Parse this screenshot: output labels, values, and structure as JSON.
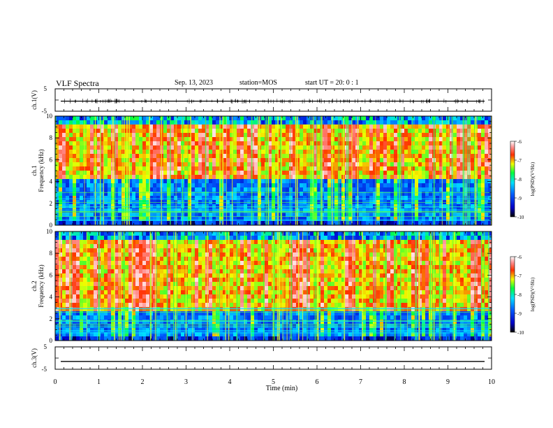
{
  "header": {
    "title": "VLF Spectra",
    "date": "Sep. 13, 2023",
    "station": "station=MOS",
    "start": "start  UT =   20: 0  : 1"
  },
  "chart_data": [
    {
      "type": "line",
      "panel": "ch1-waveform",
      "ylabel": "ch.1(V)",
      "yticks": [
        "5",
        "-5"
      ],
      "ylim": [
        -5,
        5
      ],
      "series": [
        {
          "values": [
            -0.5
          ]
        }
      ]
    },
    {
      "type": "heatmap",
      "panel": "ch1-spectrogram",
      "ylabel_top": "ch.1",
      "ylabel": "Frequency (kHz)",
      "ylim": [
        0,
        10
      ],
      "yticks": [
        "0",
        "2",
        "4",
        "6",
        "8",
        "10"
      ],
      "xlim": [
        0,
        10
      ],
      "colorbar": {
        "label": "log(PSD)(V²/Hz)",
        "range": [
          -10,
          -6
        ],
        "ticks": [
          "-6",
          "-7",
          "-8",
          "-9",
          "-10"
        ]
      }
    },
    {
      "type": "heatmap",
      "panel": "ch2-spectrogram",
      "ylabel_top": "ch.2",
      "ylabel": "Frequency (kHz)",
      "ylim": [
        0,
        10
      ],
      "yticks": [
        "0",
        "2",
        "4",
        "6",
        "8",
        "10"
      ],
      "xlim": [
        0,
        10
      ],
      "colorbar": {
        "label": "log(PSD)(V²/Hz)",
        "range": [
          -10,
          -6
        ],
        "ticks": [
          "-6",
          "-7",
          "-8",
          "-9",
          "-10"
        ]
      }
    },
    {
      "type": "line",
      "panel": "ch3-waveform",
      "ylabel": "ch.3(V)",
      "yticks": [
        "5",
        "-5"
      ],
      "ylim": [
        -5,
        5
      ],
      "series": [
        {
          "values": [
            -1.5
          ]
        }
      ]
    }
  ],
  "xaxis": {
    "label": "Time (min)",
    "ticks": [
      "0",
      "1",
      "2",
      "3",
      "4",
      "5",
      "6",
      "7",
      "8",
      "9",
      "10"
    ]
  }
}
